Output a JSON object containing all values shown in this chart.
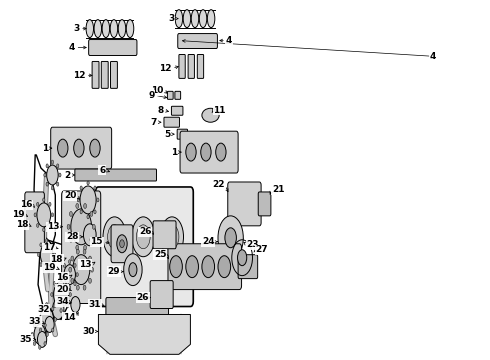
{
  "bg_color": "#ffffff",
  "fig_width": 4.9,
  "fig_height": 3.6,
  "dpi": 100,
  "label_font_size": 6.5,
  "line_color": "#000000"
}
